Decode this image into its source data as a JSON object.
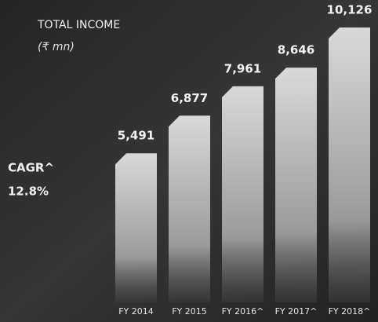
{
  "chart_data": {
    "type": "bar",
    "title": "TOTAL INCOME",
    "subtitle": "(₹ mn)",
    "annotations": [
      "CAGR^",
      "12.8%"
    ],
    "categories": [
      "FY 2014",
      "FY 2015",
      "FY 2016^",
      "FY 2017^",
      "FY 2018^"
    ],
    "values": [
      5491,
      6877,
      7961,
      8646,
      10126
    ],
    "value_labels": [
      "5,491",
      "6,877",
      "7,961",
      "8,646",
      "10,126"
    ],
    "color": "#d9d9d9"
  }
}
